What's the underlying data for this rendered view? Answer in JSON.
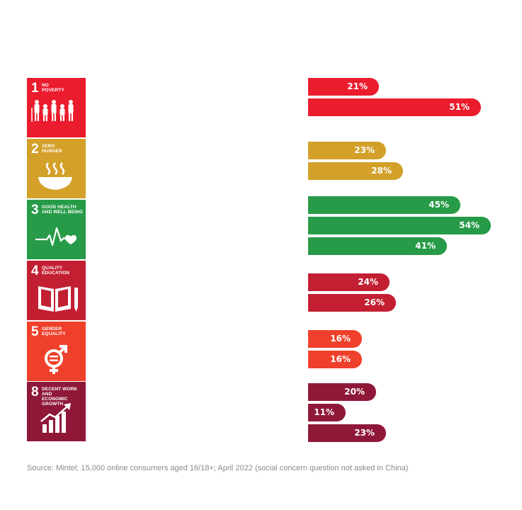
{
  "chart_data": {
    "type": "bar",
    "orientation": "horizontal",
    "groups": [
      {
        "number": "1",
        "label_line1": "NO",
        "label_line2": "POVERTY",
        "icon": "family-icon",
        "color": "#EB1C2D",
        "values": [
          21,
          51
        ],
        "labels": [
          "21%",
          "51%"
        ]
      },
      {
        "number": "2",
        "label_line1": "ZERO",
        "label_line2": "HUNGER",
        "icon": "bowl-icon",
        "color": "#D3A029",
        "values": [
          23,
          28
        ],
        "labels": [
          "23%",
          "28%"
        ]
      },
      {
        "number": "3",
        "label_line1": "GOOD HEALTH",
        "label_line2": "AND WELL BEING",
        "icon": "heartbeat-icon",
        "color": "#279B48",
        "values": [
          45,
          54,
          41
        ],
        "labels": [
          "45%",
          "54%",
          "41%"
        ]
      },
      {
        "number": "4",
        "label_line1": "QUALITY",
        "label_line2": "EDUCATION",
        "icon": "book-pencil-icon",
        "color": "#C31F33",
        "values": [
          24,
          26
        ],
        "labels": [
          "24%",
          "26%"
        ]
      },
      {
        "number": "5",
        "label_line1": "GENDER",
        "label_line2": "EQUALITY",
        "icon": "gender-equality-icon",
        "color": "#EF402B",
        "values": [
          16,
          16
        ],
        "labels": [
          "16%",
          "16%"
        ]
      },
      {
        "number": "8",
        "label_line1": "DECENT WORK AND",
        "label_line2": "ECONOMIC GROWTH",
        "icon": "growth-chart-icon",
        "color": "#8F1838",
        "values": [
          20,
          11,
          23
        ],
        "labels": [
          "20%",
          "11%",
          "23%"
        ]
      }
    ]
  },
  "source": "Source: Mintel; 15,000 online consumers aged 16/18+; April 2022 (social concern question not asked in China)"
}
